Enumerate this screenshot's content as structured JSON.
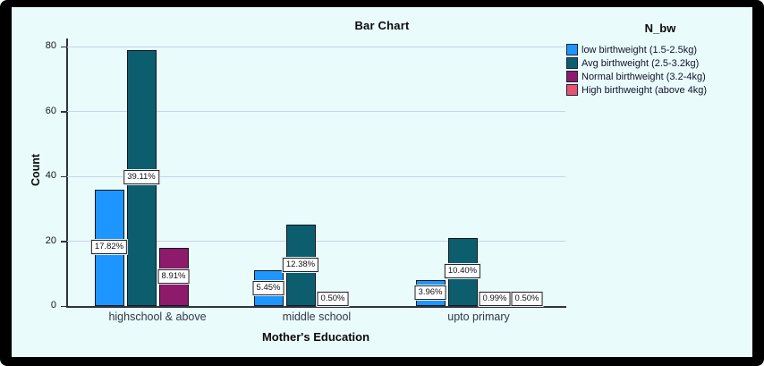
{
  "colors": {
    "background": "#E9FBFA",
    "frame": "#000000",
    "gridline": "#C9D5E6",
    "axis": "#2E3440",
    "bar_border": "#10151F",
    "label_box_bg": "#FFFFFF"
  },
  "chart_data": {
    "type": "bar",
    "title": "Bar Chart",
    "xlabel": "Mother's Education",
    "ylabel": "Count",
    "legend_title": "N_bw",
    "legend_position": "right",
    "grid": true,
    "ylim": [
      0,
      85
    ],
    "yticks": [
      0,
      20,
      40,
      60,
      80
    ],
    "categories": [
      "highschool & above",
      "middle school",
      "upto primary"
    ],
    "series": [
      {
        "name": "low birthweight (1.5-2.5kg)",
        "color": "#1E96FF",
        "values": [
          36,
          11,
          8
        ],
        "labels": [
          "17.82%",
          "5.45%",
          "3.96%"
        ]
      },
      {
        "name": "Avg birthweight (2.5-3.2kg)",
        "color": "#0C5E6F",
        "values": [
          79,
          25,
          21
        ],
        "labels": [
          "39.11%",
          "12.38%",
          "10.40%"
        ]
      },
      {
        "name": "Normal birthweight (3.2-4kg)",
        "color": "#8E1A6B",
        "values": [
          18,
          1,
          2
        ],
        "labels": [
          "8.91%",
          "0.50%",
          "0.99%"
        ]
      },
      {
        "name": "High birthweight (above 4kg)",
        "color": "#E9536F",
        "values": [
          0,
          0,
          1
        ],
        "labels": [
          null,
          null,
          "0.50%"
        ]
      }
    ]
  }
}
